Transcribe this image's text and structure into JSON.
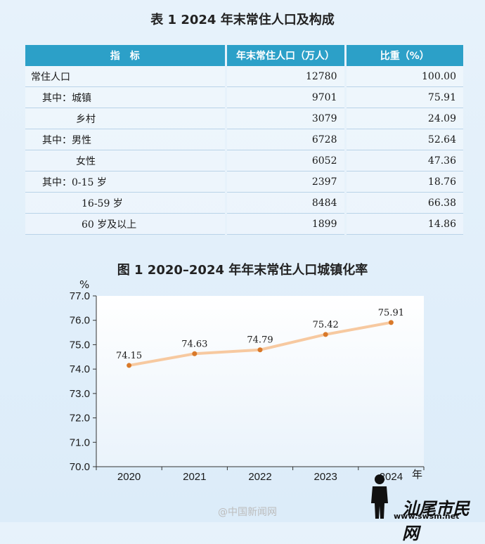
{
  "table": {
    "title": "表 1  2024 年末常住人口及构成",
    "headers": [
      "指　标",
      "年末常住人口（万人）",
      "比重（%）"
    ],
    "rows": [
      {
        "label": "常住人口",
        "level": 0,
        "population": "12780",
        "share": "100.00"
      },
      {
        "label": "其中：城镇",
        "level": 1,
        "population": "9701",
        "share": "75.91"
      },
      {
        "label": "乡村",
        "level": 2,
        "population": "3079",
        "share": "24.09"
      },
      {
        "label": "其中：男性",
        "level": 1,
        "population": "6728",
        "share": "52.64"
      },
      {
        "label": "女性",
        "level": 2,
        "population": "6052",
        "share": "47.36"
      },
      {
        "label": "其中：0-15 岁",
        "level": 1,
        "population": "2397",
        "share": "18.76"
      },
      {
        "label": "16-59 岁",
        "level": 3,
        "population": "8484",
        "share": "66.38"
      },
      {
        "label": "60 岁及以上",
        "level": 3,
        "population": "1899",
        "share": "14.86"
      }
    ]
  },
  "chart_data": {
    "type": "line",
    "title": "图 1  2020–2024 年年末常住人口城镇化率",
    "ylabel": "%",
    "xlabel": "年",
    "categories": [
      "2020",
      "2021",
      "2022",
      "2023",
      "2024"
    ],
    "series": [
      {
        "values": [
          74.15,
          74.63,
          74.79,
          75.42,
          75.91
        ]
      }
    ],
    "data_labels": [
      "74.15",
      "74.63",
      "74.79",
      "75.42",
      "75.91"
    ],
    "y_ticks": [
      "77.0",
      "76.0",
      "75.0",
      "74.0",
      "73.0",
      "72.0",
      "71.0",
      "70.0"
    ],
    "ylim": [
      70,
      77
    ],
    "grid": false,
    "line_color": "#f7c9a0",
    "marker_color": "#d9792a",
    "legend": "none"
  },
  "watermark": {
    "left": "@中国新闻网",
    "right": "汕尾市民网",
    "url": "www.swsm.net"
  }
}
